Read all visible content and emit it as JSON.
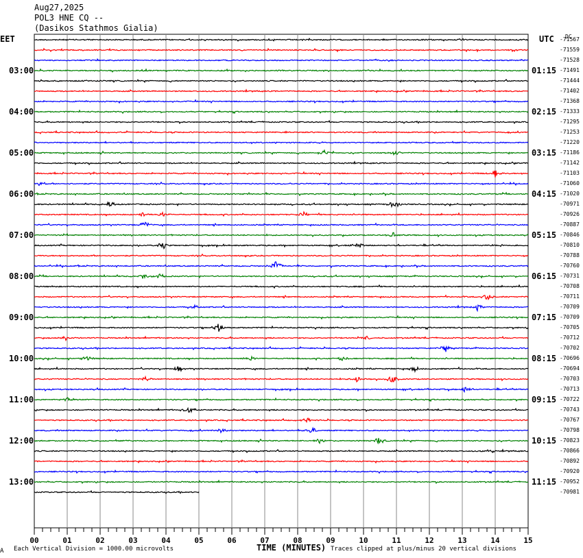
{
  "header": {
    "date": "Aug27,2025",
    "station": "POL3 HNE CQ --",
    "site": "(Dasikos Stathmos Gialia)"
  },
  "left_timezone": "EET",
  "right_timezone": "UTC",
  "dc_label": "DC",
  "footer": {
    "left": "Each Vertical Division = 1000.00 microvolts",
    "axis_title": "TIME (MINUTES)",
    "right": "Traces clipped at plus/minus 20 vertical divisions",
    "corner": "A"
  },
  "colors": {
    "trace_cycle": [
      "#000000",
      "#ff0000",
      "#0000ff",
      "#008000"
    ],
    "grid": "#888888"
  },
  "chart_data": {
    "type": "line",
    "xlabel": "TIME (MINUTES)",
    "xlim": [
      0,
      15
    ],
    "x_ticks": [
      "00",
      "01",
      "02",
      "03",
      "04",
      "05",
      "06",
      "07",
      "08",
      "09",
      "10",
      "11",
      "12",
      "13",
      "14",
      "15"
    ],
    "left_time_labels": [
      "03:00",
      "04:00",
      "05:00",
      "06:00",
      "07:00",
      "08:00",
      "09:00",
      "10:00",
      "11:00",
      "12:00",
      "13:00"
    ],
    "right_time_labels": [
      "01:15",
      "02:15",
      "03:15",
      "04:15",
      "05:15",
      "06:15",
      "07:15",
      "08:15",
      "09:15",
      "10:15",
      "11:15"
    ],
    "dc_offsets": [
      "-71567",
      "-71559",
      "-71528",
      "-71491",
      "-71444",
      "-71402",
      "-71368",
      "-71333",
      "-71295",
      "-71253",
      "-71220",
      "-71186",
      "-71142",
      "-71103",
      "-71060",
      "-71020",
      "-70971",
      "-70926",
      "-70887",
      "-70846",
      "-70810",
      "-70788",
      "-70760",
      "-70731",
      "-70708",
      "-70711",
      "-70709",
      "-70709",
      "-70705",
      "-70712",
      "-70702",
      "-70696",
      "-70694",
      "-70703",
      "-70713",
      "-70722",
      "-70743",
      "-70767",
      "-70798",
      "-70823",
      "-70866",
      "-70892",
      "-70920",
      "-70952",
      "-70981"
    ],
    "traces": 45,
    "last_trace_end_minute": 5,
    "events": [
      {
        "trace": 11,
        "minute": 8.8,
        "amp": 5
      },
      {
        "trace": 11,
        "minute": 10.95,
        "amp": 4
      },
      {
        "trace": 13,
        "minute": 14.0,
        "amp": 6
      },
      {
        "trace": 14,
        "minute": 0.2,
        "amp": 4
      },
      {
        "trace": 16,
        "minute": 2.3,
        "amp": 4
      },
      {
        "trace": 16,
        "minute": 10.95,
        "amp": 7
      },
      {
        "trace": 17,
        "minute": 3.3,
        "amp": 4
      },
      {
        "trace": 17,
        "minute": 3.9,
        "amp": 5
      },
      {
        "trace": 17,
        "minute": 8.15,
        "amp": 5
      },
      {
        "trace": 18,
        "minute": 3.35,
        "amp": 6
      },
      {
        "trace": 19,
        "minute": 10.9,
        "amp": 4
      },
      {
        "trace": 20,
        "minute": 3.9,
        "amp": 6
      },
      {
        "trace": 20,
        "minute": 9.85,
        "amp": 5
      },
      {
        "trace": 22,
        "minute": 7.35,
        "amp": 9
      },
      {
        "trace": 23,
        "minute": 3.3,
        "amp": 4
      },
      {
        "trace": 23,
        "minute": 3.8,
        "amp": 5
      },
      {
        "trace": 25,
        "minute": 13.75,
        "amp": 6
      },
      {
        "trace": 26,
        "minute": 4.9,
        "amp": 4
      },
      {
        "trace": 26,
        "minute": 13.45,
        "amp": 5
      },
      {
        "trace": 28,
        "minute": 5.6,
        "amp": 6
      },
      {
        "trace": 29,
        "minute": 0.95,
        "amp": 4
      },
      {
        "trace": 29,
        "minute": 10.1,
        "amp": 4
      },
      {
        "trace": 30,
        "minute": 12.5,
        "amp": 6
      },
      {
        "trace": 31,
        "minute": 1.6,
        "amp": 5
      },
      {
        "trace": 31,
        "minute": 6.6,
        "amp": 5
      },
      {
        "trace": 31,
        "minute": 9.35,
        "amp": 4
      },
      {
        "trace": 32,
        "minute": 4.4,
        "amp": 5
      },
      {
        "trace": 32,
        "minute": 11.55,
        "amp": 4
      },
      {
        "trace": 33,
        "minute": 3.4,
        "amp": 4
      },
      {
        "trace": 33,
        "minute": 9.8,
        "amp": 4
      },
      {
        "trace": 33,
        "minute": 10.85,
        "amp": 8
      },
      {
        "trace": 34,
        "minute": 13.1,
        "amp": 5
      },
      {
        "trace": 35,
        "minute": 1.0,
        "amp": 4
      },
      {
        "trace": 36,
        "minute": 4.7,
        "amp": 6
      },
      {
        "trace": 37,
        "minute": 8.3,
        "amp": 4
      },
      {
        "trace": 38,
        "minute": 5.7,
        "amp": 4
      },
      {
        "trace": 38,
        "minute": 8.45,
        "amp": 6
      },
      {
        "trace": 39,
        "minute": 8.65,
        "amp": 4
      },
      {
        "trace": 39,
        "minute": 10.45,
        "amp": 5
      },
      {
        "trace": 40,
        "minute": 13.85,
        "amp": 3
      }
    ]
  }
}
